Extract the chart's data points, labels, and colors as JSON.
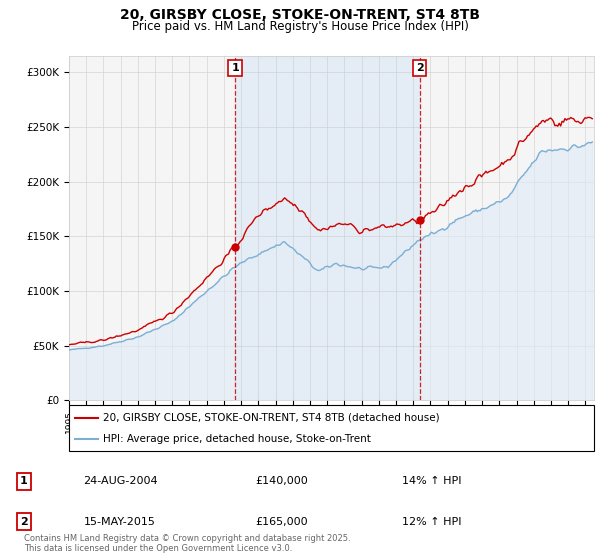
{
  "title": "20, GIRSBY CLOSE, STOKE-ON-TRENT, ST4 8TB",
  "subtitle": "Price paid vs. HM Land Registry's House Price Index (HPI)",
  "ylabel_ticks": [
    "£0",
    "£50K",
    "£100K",
    "£150K",
    "£200K",
    "£250K",
    "£300K"
  ],
  "ylim": [
    0,
    315000
  ],
  "xlim_start": 1995.0,
  "xlim_end": 2025.5,
  "purchase1_year": 2004.65,
  "purchase1_price": 140000,
  "purchase1_hpi_pct": 14,
  "purchase1_text": "24-AUG-2004",
  "purchase2_year": 2015.37,
  "purchase2_price": 165000,
  "purchase2_text": "15-MAY-2015",
  "purchase2_hpi_pct": 12,
  "line_color_property": "#cc0000",
  "line_color_hpi": "#7bafd4",
  "fill_color_hpi": "#deeaf5",
  "vline_color": "#cc0000",
  "grid_color": "#cccccc",
  "bg_color": "#f5f5f5",
  "legend_label_property": "20, GIRSBY CLOSE, STOKE-ON-TRENT, ST4 8TB (detached house)",
  "legend_label_hpi": "HPI: Average price, detached house, Stoke-on-Trent",
  "footer": "Contains HM Land Registry data © Crown copyright and database right 2025.\nThis data is licensed under the Open Government Licence v3.0.",
  "title_fontsize": 10,
  "subtitle_fontsize": 8.5,
  "tick_fontsize": 7.5,
  "legend_fontsize": 7.5
}
